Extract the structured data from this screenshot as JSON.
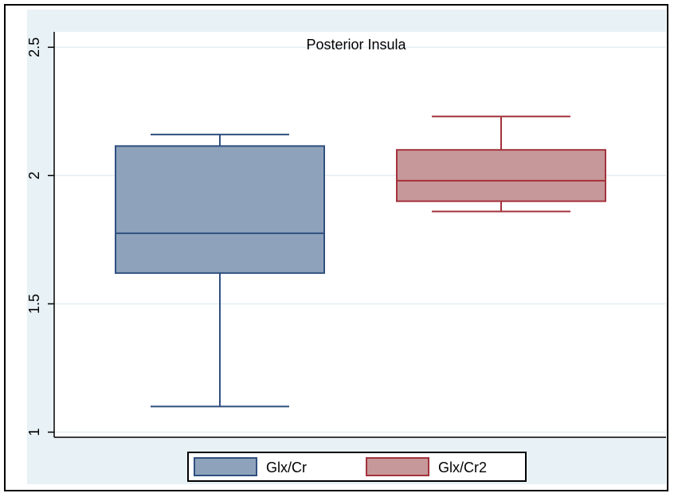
{
  "chart_data": {
    "type": "box",
    "title": "Posterior Insula",
    "xlabel": "",
    "ylabel": "",
    "ylim": [
      0.98,
      2.56
    ],
    "yticks": [
      1,
      1.5,
      2,
      2.5
    ],
    "ytick_labels": [
      "1",
      "1.5",
      "2",
      "2.5"
    ],
    "grid": true,
    "legend_position": "bottom",
    "series": [
      {
        "name": "Glx/Cr",
        "min": 1.1,
        "q1": 1.62,
        "median": 1.775,
        "q3": 2.115,
        "max": 2.16,
        "color": "#8ea3bb",
        "stroke": "#2f4f7f"
      },
      {
        "name": "Glx/Cr2",
        "min": 1.86,
        "q1": 1.9,
        "median": 1.98,
        "q3": 2.1,
        "max": 2.23,
        "color": "#c7989a",
        "stroke": "#a3323b"
      }
    ],
    "colors": {
      "grid": "#e3eef2",
      "outer_background": "#e8f1f5",
      "plot_background": "#ffffff"
    }
  }
}
